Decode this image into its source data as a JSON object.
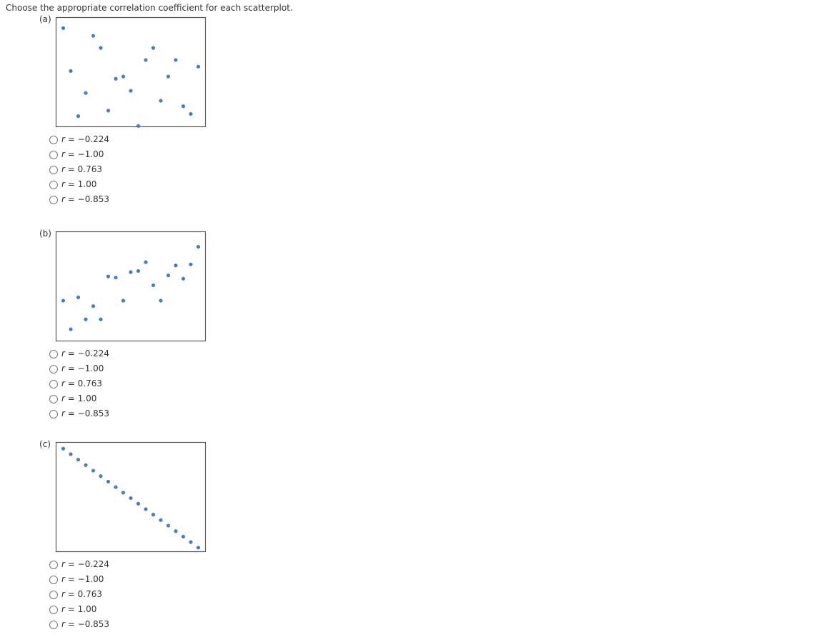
{
  "question": "Choose the appropriate correlation coefficient for each scatterplot.",
  "parts": [
    {
      "label": "(a)",
      "chart_data": {
        "type": "scatter",
        "color": "#4a7ebb",
        "x": [
          1,
          2,
          3,
          4,
          5,
          6,
          7,
          8,
          9,
          10,
          11,
          12,
          13,
          14,
          15,
          16,
          17,
          18,
          19
        ],
        "y": [
          90,
          51,
          10,
          31,
          83,
          72,
          15,
          44,
          46,
          33,
          1,
          61,
          72,
          24,
          46,
          61,
          19,
          12,
          55
        ],
        "xlim": [
          0,
          20
        ],
        "ylim": [
          0,
          100
        ]
      },
      "options": [
        {
          "symbol": "r",
          "text": "= −0.224"
        },
        {
          "symbol": "r",
          "text": "= −1.00"
        },
        {
          "symbol": "r",
          "text": "= 0.763"
        },
        {
          "symbol": "r",
          "text": "= 1.00"
        },
        {
          "symbol": "r",
          "text": "= −0.853"
        }
      ]
    },
    {
      "label": "(b)",
      "chart_data": {
        "type": "scatter",
        "color": "#4a7ebb",
        "x": [
          1,
          2,
          3,
          4,
          5,
          6,
          7,
          8,
          9,
          10,
          11,
          12,
          13,
          14,
          15,
          16,
          17,
          18,
          19
        ],
        "y": [
          37,
          11,
          40,
          20,
          32,
          20,
          59,
          58,
          37,
          63,
          64,
          72,
          51,
          37,
          60,
          69,
          57,
          70,
          86
        ],
        "xlim": [
          0,
          20
        ],
        "ylim": [
          0,
          100
        ]
      },
      "options": [
        {
          "symbol": "r",
          "text": "= −0.224"
        },
        {
          "symbol": "r",
          "text": "= −1.00"
        },
        {
          "symbol": "r",
          "text": "= 0.763"
        },
        {
          "symbol": "r",
          "text": "= 1.00"
        },
        {
          "symbol": "r",
          "text": "= −0.853"
        }
      ]
    },
    {
      "label": "(c)",
      "chart_data": {
        "type": "scatter",
        "color": "#4a7ebb",
        "x": [
          1,
          2,
          3,
          4,
          5,
          6,
          7,
          8,
          9,
          10,
          11,
          12,
          13,
          14,
          15,
          16,
          17,
          18,
          19
        ],
        "y": [
          94,
          89,
          84,
          79,
          74,
          69,
          64,
          59,
          54,
          49,
          44,
          39,
          34,
          29,
          24,
          19,
          14,
          9,
          4
        ],
        "xlim": [
          0,
          20
        ],
        "ylim": [
          0,
          100
        ]
      },
      "options": [
        {
          "symbol": "r",
          "text": "= −0.224"
        },
        {
          "symbol": "r",
          "text": "= −1.00"
        },
        {
          "symbol": "r",
          "text": "= 0.763"
        },
        {
          "symbol": "r",
          "text": "= 1.00"
        },
        {
          "symbol": "r",
          "text": "= −0.853"
        }
      ]
    }
  ]
}
